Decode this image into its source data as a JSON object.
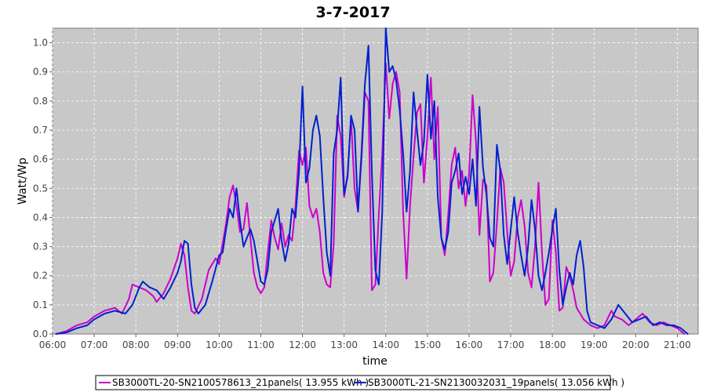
{
  "chart_data": {
    "type": "line",
    "title": "3-7-2017",
    "xlabel": "time",
    "ylabel": "Watt/Wp",
    "xlim": [
      "06:00",
      "21:30"
    ],
    "ylim": [
      0,
      1.05
    ],
    "x_ticks": [
      "06:00",
      "07:00",
      "08:00",
      "09:00",
      "10:00",
      "11:00",
      "12:00",
      "13:00",
      "14:00",
      "15:00",
      "16:00",
      "17:00",
      "18:00",
      "19:00",
      "20:00",
      "21:00"
    ],
    "y_ticks": [
      "0.0",
      "0.1",
      "0.2",
      "0.3",
      "0.4",
      "0.5",
      "0.6",
      "0.7",
      "0.8",
      "0.9",
      "1.0"
    ],
    "grid": true,
    "legend_position": "bottom",
    "colors": {
      "plot_background": "#c8c8c8",
      "grid": "#ffffff"
    },
    "series": [
      {
        "name": "SB3000TL-20-SN2100578613_21panels( 13.955 kWh )",
        "color": "#cc00cc",
        "points": [
          [
            "06:05",
            0.0
          ],
          [
            "06:20",
            0.01
          ],
          [
            "06:35",
            0.03
          ],
          [
            "06:50",
            0.04
          ],
          [
            "07:00",
            0.06
          ],
          [
            "07:15",
            0.08
          ],
          [
            "07:30",
            0.09
          ],
          [
            "07:40",
            0.07
          ],
          [
            "07:50",
            0.12
          ],
          [
            "07:55",
            0.17
          ],
          [
            "08:05",
            0.16
          ],
          [
            "08:15",
            0.15
          ],
          [
            "08:25",
            0.13
          ],
          [
            "08:30",
            0.11
          ],
          [
            "08:40",
            0.14
          ],
          [
            "08:50",
            0.19
          ],
          [
            "09:00",
            0.26
          ],
          [
            "09:05",
            0.31
          ],
          [
            "09:10",
            0.27
          ],
          [
            "09:15",
            0.16
          ],
          [
            "09:20",
            0.08
          ],
          [
            "09:25",
            0.07
          ],
          [
            "09:35",
            0.12
          ],
          [
            "09:45",
            0.22
          ],
          [
            "09:55",
            0.26
          ],
          [
            "10:00",
            0.24
          ],
          [
            "10:05",
            0.31
          ],
          [
            "10:10",
            0.38
          ],
          [
            "10:15",
            0.47
          ],
          [
            "10:20",
            0.51
          ],
          [
            "10:25",
            0.44
          ],
          [
            "10:30",
            0.35
          ],
          [
            "10:35",
            0.36
          ],
          [
            "10:40",
            0.45
          ],
          [
            "10:45",
            0.33
          ],
          [
            "10:50",
            0.21
          ],
          [
            "10:55",
            0.16
          ],
          [
            "11:00",
            0.14
          ],
          [
            "11:05",
            0.16
          ],
          [
            "11:10",
            0.28
          ],
          [
            "11:15",
            0.39
          ],
          [
            "11:20",
            0.33
          ],
          [
            "11:25",
            0.29
          ],
          [
            "11:30",
            0.38
          ],
          [
            "11:35",
            0.3
          ],
          [
            "11:40",
            0.34
          ],
          [
            "11:45",
            0.32
          ],
          [
            "11:50",
            0.44
          ],
          [
            "11:55",
            0.63
          ],
          [
            "12:00",
            0.58
          ],
          [
            "12:05",
            0.64
          ],
          [
            "12:10",
            0.44
          ],
          [
            "12:15",
            0.4
          ],
          [
            "12:20",
            0.43
          ],
          [
            "12:25",
            0.35
          ],
          [
            "12:30",
            0.21
          ],
          [
            "12:35",
            0.17
          ],
          [
            "12:40",
            0.16
          ],
          [
            "12:45",
            0.31
          ],
          [
            "12:50",
            0.75
          ],
          [
            "12:55",
            0.68
          ],
          [
            "13:00",
            0.47
          ],
          [
            "13:05",
            0.55
          ],
          [
            "13:10",
            0.74
          ],
          [
            "13:15",
            0.5
          ],
          [
            "13:20",
            0.42
          ],
          [
            "13:25",
            0.6
          ],
          [
            "13:30",
            0.83
          ],
          [
            "13:35",
            0.8
          ],
          [
            "13:40",
            0.15
          ],
          [
            "13:45",
            0.17
          ],
          [
            "13:50",
            0.41
          ],
          [
            "13:55",
            0.62
          ],
          [
            "14:00",
            0.93
          ],
          [
            "14:05",
            0.74
          ],
          [
            "14:10",
            0.86
          ],
          [
            "14:15",
            0.9
          ],
          [
            "14:20",
            0.83
          ],
          [
            "14:25",
            0.42
          ],
          [
            "14:30",
            0.19
          ],
          [
            "14:35",
            0.44
          ],
          [
            "14:40",
            0.61
          ],
          [
            "14:45",
            0.76
          ],
          [
            "14:50",
            0.79
          ],
          [
            "14:55",
            0.52
          ],
          [
            "15:00",
            0.68
          ],
          [
            "15:05",
            0.88
          ],
          [
            "15:10",
            0.6
          ],
          [
            "15:15",
            0.78
          ],
          [
            "15:20",
            0.33
          ],
          [
            "15:25",
            0.27
          ],
          [
            "15:30",
            0.41
          ],
          [
            "15:35",
            0.58
          ],
          [
            "15:40",
            0.64
          ],
          [
            "15:45",
            0.5
          ],
          [
            "15:50",
            0.56
          ],
          [
            "15:55",
            0.44
          ],
          [
            "16:00",
            0.55
          ],
          [
            "16:05",
            0.82
          ],
          [
            "16:10",
            0.66
          ],
          [
            "16:15",
            0.34
          ],
          [
            "16:20",
            0.53
          ],
          [
            "16:25",
            0.51
          ],
          [
            "16:30",
            0.18
          ],
          [
            "16:35",
            0.21
          ],
          [
            "16:40",
            0.38
          ],
          [
            "16:45",
            0.57
          ],
          [
            "16:50",
            0.52
          ],
          [
            "16:55",
            0.35
          ],
          [
            "17:00",
            0.2
          ],
          [
            "17:05",
            0.25
          ],
          [
            "17:10",
            0.4
          ],
          [
            "17:15",
            0.46
          ],
          [
            "17:20",
            0.37
          ],
          [
            "17:25",
            0.21
          ],
          [
            "17:30",
            0.16
          ],
          [
            "17:35",
            0.3
          ],
          [
            "17:40",
            0.52
          ],
          [
            "17:45",
            0.28
          ],
          [
            "17:50",
            0.1
          ],
          [
            "17:55",
            0.12
          ],
          [
            "18:00",
            0.39
          ],
          [
            "18:05",
            0.28
          ],
          [
            "18:10",
            0.08
          ],
          [
            "18:15",
            0.09
          ],
          [
            "18:20",
            0.23
          ],
          [
            "18:25",
            0.2
          ],
          [
            "18:30",
            0.15
          ],
          [
            "18:35",
            0.09
          ],
          [
            "18:40",
            0.07
          ],
          [
            "18:45",
            0.05
          ],
          [
            "18:55",
            0.03
          ],
          [
            "19:05",
            0.02
          ],
          [
            "19:15",
            0.03
          ],
          [
            "19:25",
            0.08
          ],
          [
            "19:30",
            0.06
          ],
          [
            "19:40",
            0.05
          ],
          [
            "19:50",
            0.03
          ],
          [
            "20:00",
            0.05
          ],
          [
            "20:10",
            0.07
          ],
          [
            "20:20",
            0.04
          ],
          [
            "20:30",
            0.03
          ],
          [
            "20:40",
            0.04
          ],
          [
            "20:50",
            0.03
          ],
          [
            "21:00",
            0.02
          ],
          [
            "21:10",
            0.0
          ]
        ]
      },
      {
        "name": "SB3000TL-21-SN2130032031_19panels( 13.056 kWh )",
        "color": "#0020d0",
        "points": [
          [
            "06:05",
            0.0
          ],
          [
            "06:20",
            0.005
          ],
          [
            "06:35",
            0.02
          ],
          [
            "06:50",
            0.03
          ],
          [
            "07:00",
            0.05
          ],
          [
            "07:15",
            0.07
          ],
          [
            "07:30",
            0.08
          ],
          [
            "07:45",
            0.07
          ],
          [
            "07:55",
            0.1
          ],
          [
            "08:05",
            0.16
          ],
          [
            "08:10",
            0.18
          ],
          [
            "08:20",
            0.16
          ],
          [
            "08:30",
            0.15
          ],
          [
            "08:40",
            0.12
          ],
          [
            "08:50",
            0.16
          ],
          [
            "09:00",
            0.21
          ],
          [
            "09:05",
            0.25
          ],
          [
            "09:10",
            0.32
          ],
          [
            "09:15",
            0.31
          ],
          [
            "09:20",
            0.17
          ],
          [
            "09:25",
            0.09
          ],
          [
            "09:30",
            0.07
          ],
          [
            "09:40",
            0.1
          ],
          [
            "09:50",
            0.18
          ],
          [
            "10:00",
            0.27
          ],
          [
            "10:05",
            0.28
          ],
          [
            "10:10",
            0.36
          ],
          [
            "10:15",
            0.43
          ],
          [
            "10:20",
            0.4
          ],
          [
            "10:25",
            0.5
          ],
          [
            "10:30",
            0.39
          ],
          [
            "10:35",
            0.3
          ],
          [
            "10:40",
            0.33
          ],
          [
            "10:45",
            0.36
          ],
          [
            "10:50",
            0.32
          ],
          [
            "11:00",
            0.18
          ],
          [
            "11:05",
            0.17
          ],
          [
            "11:10",
            0.22
          ],
          [
            "11:15",
            0.35
          ],
          [
            "11:20",
            0.39
          ],
          [
            "11:25",
            0.43
          ],
          [
            "11:30",
            0.32
          ],
          [
            "11:35",
            0.25
          ],
          [
            "11:40",
            0.31
          ],
          [
            "11:45",
            0.43
          ],
          [
            "11:50",
            0.4
          ],
          [
            "11:55",
            0.56
          ],
          [
            "12:00",
            0.85
          ],
          [
            "12:05",
            0.52
          ],
          [
            "12:10",
            0.57
          ],
          [
            "12:15",
            0.7
          ],
          [
            "12:20",
            0.75
          ],
          [
            "12:25",
            0.68
          ],
          [
            "12:30",
            0.47
          ],
          [
            "12:35",
            0.28
          ],
          [
            "12:40",
            0.2
          ],
          [
            "12:45",
            0.62
          ],
          [
            "12:50",
            0.7
          ],
          [
            "12:55",
            0.88
          ],
          [
            "13:00",
            0.48
          ],
          [
            "13:05",
            0.54
          ],
          [
            "13:10",
            0.75
          ],
          [
            "13:15",
            0.7
          ],
          [
            "13:20",
            0.42
          ],
          [
            "13:25",
            0.62
          ],
          [
            "13:30",
            0.86
          ],
          [
            "13:35",
            0.99
          ],
          [
            "13:40",
            0.55
          ],
          [
            "13:45",
            0.22
          ],
          [
            "13:50",
            0.17
          ],
          [
            "13:55",
            0.42
          ],
          [
            "14:00",
            1.05
          ],
          [
            "14:05",
            0.9
          ],
          [
            "14:10",
            0.92
          ],
          [
            "14:15",
            0.87
          ],
          [
            "14:20",
            0.77
          ],
          [
            "14:25",
            0.62
          ],
          [
            "14:30",
            0.42
          ],
          [
            "14:35",
            0.56
          ],
          [
            "14:40",
            0.83
          ],
          [
            "14:45",
            0.7
          ],
          [
            "14:50",
            0.58
          ],
          [
            "14:55",
            0.66
          ],
          [
            "15:00",
            0.89
          ],
          [
            "15:05",
            0.67
          ],
          [
            "15:10",
            0.8
          ],
          [
            "15:15",
            0.47
          ],
          [
            "15:20",
            0.33
          ],
          [
            "15:25",
            0.29
          ],
          [
            "15:30",
            0.35
          ],
          [
            "15:35",
            0.52
          ],
          [
            "15:40",
            0.56
          ],
          [
            "15:45",
            0.62
          ],
          [
            "15:50",
            0.48
          ],
          [
            "15:55",
            0.54
          ],
          [
            "16:00",
            0.48
          ],
          [
            "16:05",
            0.6
          ],
          [
            "16:10",
            0.44
          ],
          [
            "16:15",
            0.78
          ],
          [
            "16:20",
            0.57
          ],
          [
            "16:25",
            0.48
          ],
          [
            "16:30",
            0.33
          ],
          [
            "16:35",
            0.3
          ],
          [
            "16:40",
            0.65
          ],
          [
            "16:45",
            0.56
          ],
          [
            "16:50",
            0.34
          ],
          [
            "16:55",
            0.24
          ],
          [
            "17:00",
            0.36
          ],
          [
            "17:05",
            0.47
          ],
          [
            "17:10",
            0.35
          ],
          [
            "17:15",
            0.27
          ],
          [
            "17:20",
            0.2
          ],
          [
            "17:25",
            0.3
          ],
          [
            "17:30",
            0.46
          ],
          [
            "17:35",
            0.36
          ],
          [
            "17:40",
            0.2
          ],
          [
            "17:45",
            0.15
          ],
          [
            "17:50",
            0.21
          ],
          [
            "17:55",
            0.28
          ],
          [
            "18:00",
            0.36
          ],
          [
            "18:05",
            0.43
          ],
          [
            "18:10",
            0.22
          ],
          [
            "18:15",
            0.1
          ],
          [
            "18:20",
            0.16
          ],
          [
            "18:25",
            0.21
          ],
          [
            "18:30",
            0.17
          ],
          [
            "18:35",
            0.27
          ],
          [
            "18:40",
            0.32
          ],
          [
            "18:45",
            0.23
          ],
          [
            "18:50",
            0.08
          ],
          [
            "18:55",
            0.04
          ],
          [
            "19:05",
            0.03
          ],
          [
            "19:15",
            0.02
          ],
          [
            "19:25",
            0.05
          ],
          [
            "19:35",
            0.1
          ],
          [
            "19:45",
            0.07
          ],
          [
            "19:55",
            0.04
          ],
          [
            "20:05",
            0.05
          ],
          [
            "20:15",
            0.06
          ],
          [
            "20:25",
            0.03
          ],
          [
            "20:35",
            0.04
          ],
          [
            "20:45",
            0.03
          ],
          [
            "20:55",
            0.03
          ],
          [
            "21:05",
            0.02
          ],
          [
            "21:15",
            0.0
          ]
        ]
      }
    ]
  }
}
